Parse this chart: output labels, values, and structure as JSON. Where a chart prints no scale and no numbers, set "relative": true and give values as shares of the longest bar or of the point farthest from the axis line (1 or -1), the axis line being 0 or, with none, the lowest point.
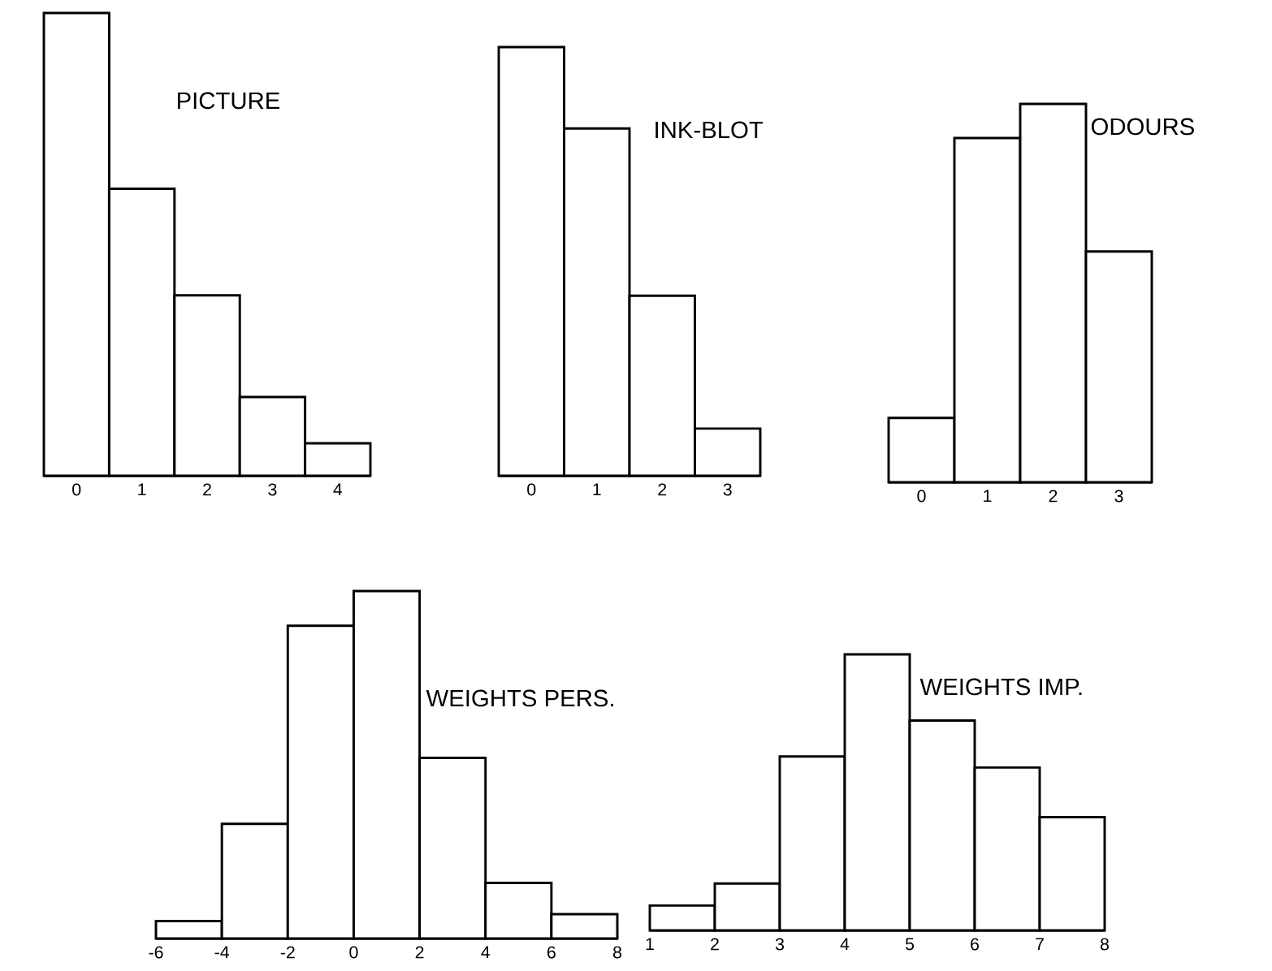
{
  "chart_data": [
    {
      "type": "bar",
      "title": "PICTURE",
      "relative": true,
      "color": "#000000",
      "categories": [
        "0",
        "1",
        "2",
        "3",
        "4"
      ],
      "values": [
        1,
        0.62,
        0.39,
        0.17,
        0.07
      ]
    },
    {
      "type": "bar",
      "title": "INK-BLOT",
      "relative": true,
      "color": "#000000",
      "categories": [
        "0",
        "1",
        "2",
        "3"
      ],
      "values": [
        1,
        0.81,
        0.42,
        0.11
      ]
    },
    {
      "type": "bar",
      "title": "ODOURS",
      "relative": true,
      "color": "#000000",
      "categories": [
        "0",
        "1",
        "2",
        "3"
      ],
      "values": [
        0.17,
        0.91,
        1,
        0.61
      ]
    },
    {
      "type": "bar",
      "title": "WEIGHTS PERS.",
      "relative": true,
      "color": "#000000",
      "x": [
        -5,
        -3,
        -1,
        1,
        3,
        5,
        7
      ],
      "values": [
        0.05,
        0.33,
        0.9,
        1,
        0.52,
        0.16,
        0.07
      ],
      "xlim": [
        -6,
        8
      ],
      "xticks": [
        -6,
        -4,
        -2,
        0,
        2,
        4,
        6,
        8
      ]
    },
    {
      "type": "bar",
      "title": "WEIGHTS IMP.",
      "relative": true,
      "color": "#000000",
      "x": [
        1.5,
        2.5,
        3.5,
        4.5,
        5.5,
        6.5,
        7.5
      ],
      "values": [
        0.09,
        0.17,
        0.63,
        1,
        0.76,
        0.59,
        0.41
      ],
      "xlim": [
        1,
        8
      ],
      "xticks": [
        1,
        2,
        3,
        4,
        5,
        6,
        7,
        8
      ]
    }
  ]
}
